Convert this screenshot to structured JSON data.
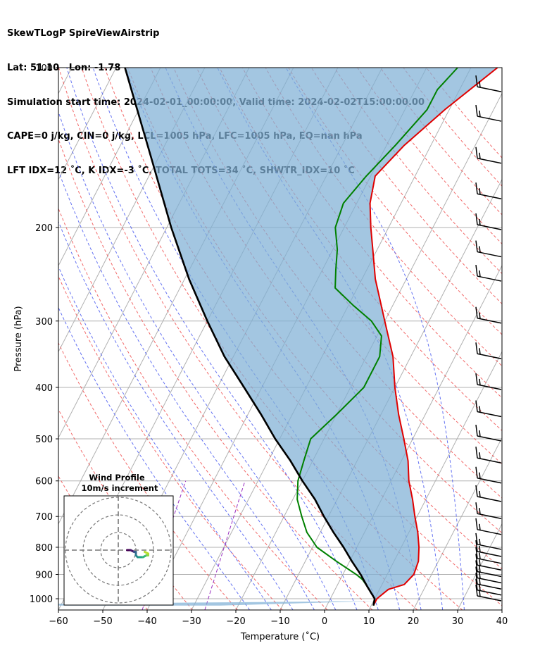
{
  "header": {
    "line1": "SkewTLogP SpireViewAirstrip",
    "line2": "Lat: 51.10   Lon: -1.78",
    "line3": "Simulation start time: 2024-02-01_00:00:00, Valid time: 2024-02-02T15:00:00.00",
    "line4": "CAPE=0 j/kg, CIN=0 j/kg, LCL=1005 hPa, LFC=1005 hPa, EQ=nan hPa",
    "line5": "LFT IDX=12 ˚C, K IDX=-3 ˚C, TOTAL TOTS=34 ˚C, SHWTR_IDX=10 ˚C"
  },
  "chart_data": {
    "type": "skewt",
    "xlabel": "Temperature (˚C)",
    "ylabel": "Pressure (hPa)",
    "xlim": [
      -60,
      40
    ],
    "plim": [
      1050,
      100
    ],
    "x_ticks": [
      -60,
      -50,
      -40,
      -30,
      -20,
      -10,
      0,
      10,
      20,
      30,
      40
    ],
    "x_tick_labels": [
      "−60",
      "−50",
      "−40",
      "−30",
      "−20",
      "−10",
      "0",
      "10",
      "20",
      "30",
      "40"
    ],
    "p_ticks": [
      1000,
      900,
      800,
      700,
      600,
      500,
      400,
      300,
      200,
      100
    ],
    "p_tick_labels": [
      "1000",
      "900",
      "800",
      "700",
      "600",
      "500",
      "400",
      "300",
      "200",
      "100"
    ],
    "series": [
      {
        "name": "Temperature",
        "color": "#e00000",
        "points": [
          [
            1030,
            10.5
          ],
          [
            1000,
            10.5
          ],
          [
            960,
            12
          ],
          [
            940,
            15
          ],
          [
            900,
            16
          ],
          [
            850,
            15.5
          ],
          [
            800,
            14
          ],
          [
            750,
            12
          ],
          [
            700,
            9.5
          ],
          [
            650,
            7
          ],
          [
            600,
            4
          ],
          [
            550,
            1.5
          ],
          [
            500,
            -2
          ],
          [
            450,
            -6
          ],
          [
            400,
            -10
          ],
          [
            350,
            -14
          ],
          [
            300,
            -20
          ],
          [
            250,
            -27
          ],
          [
            220,
            -31
          ],
          [
            200,
            -34
          ],
          [
            180,
            -37
          ],
          [
            160,
            -39
          ],
          [
            140,
            -36
          ],
          [
            120,
            -31
          ],
          [
            100,
            -24
          ]
        ]
      },
      {
        "name": "Dewpoint",
        "color": "#008000",
        "points": [
          [
            1030,
            10.5
          ],
          [
            1000,
            10
          ],
          [
            950,
            7
          ],
          [
            920,
            5
          ],
          [
            900,
            3
          ],
          [
            850,
            -3
          ],
          [
            800,
            -9
          ],
          [
            750,
            -13
          ],
          [
            700,
            -16
          ],
          [
            650,
            -19
          ],
          [
            600,
            -21
          ],
          [
            550,
            -22
          ],
          [
            500,
            -23
          ],
          [
            450,
            -20
          ],
          [
            400,
            -17
          ],
          [
            350,
            -17
          ],
          [
            320,
            -19
          ],
          [
            300,
            -23
          ],
          [
            280,
            -29
          ],
          [
            260,
            -35
          ],
          [
            240,
            -37
          ],
          [
            220,
            -39
          ],
          [
            200,
            -42
          ],
          [
            180,
            -43
          ],
          [
            160,
            -41
          ],
          [
            140,
            -38
          ],
          [
            120,
            -35
          ],
          [
            110,
            -35
          ],
          [
            100,
            -33
          ]
        ]
      },
      {
        "name": "Parcel",
        "color": "#000000",
        "points": [
          [
            1030,
            10.5
          ],
          [
            1000,
            10
          ],
          [
            950,
            7
          ],
          [
            900,
            4
          ],
          [
            850,
            0.5
          ],
          [
            800,
            -3
          ],
          [
            750,
            -7
          ],
          [
            700,
            -11
          ],
          [
            650,
            -15
          ],
          [
            600,
            -20
          ],
          [
            550,
            -25
          ],
          [
            500,
            -31
          ],
          [
            450,
            -37
          ],
          [
            400,
            -44
          ],
          [
            350,
            -52
          ],
          [
            300,
            -60
          ],
          [
            250,
            -69
          ],
          [
            200,
            -79
          ],
          [
            150,
            -91
          ],
          [
            100,
            -108
          ]
        ]
      }
    ],
    "dry_adiabats_theta_K": [
      230,
      240,
      250,
      260,
      270,
      280,
      290,
      300,
      310,
      320,
      330,
      340,
      350,
      360,
      370,
      380,
      390,
      400,
      410,
      420,
      430,
      440,
      450
    ],
    "moist_adiabats_T_C": [
      -20,
      -15,
      -10,
      -5,
      0,
      5,
      10,
      15,
      20,
      25,
      30
    ],
    "isotherms_C": [
      -140,
      -130,
      -120,
      -110,
      -100,
      -90,
      -80,
      -70,
      -60,
      -50,
      -40,
      -30,
      -20,
      -10,
      0,
      10,
      20,
      30,
      40
    ],
    "wind_barb_pressures_hPa": [
      1000,
      975,
      950,
      925,
      900,
      875,
      850,
      825,
      800,
      750,
      700,
      650,
      600,
      550,
      500,
      450,
      400,
      350,
      300,
      250,
      225,
      200,
      175,
      150,
      125,
      110
    ],
    "wind_profile": {
      "title": "Wind Profile",
      "subtitle": "10m/s increment",
      "rings_ms": [
        10,
        20,
        30
      ],
      "hodograph_uv": [
        [
          5,
          0
        ],
        [
          7,
          0
        ],
        [
          9,
          -1
        ],
        [
          10,
          -1
        ],
        [
          10,
          -3
        ],
        [
          11,
          -4
        ],
        [
          12,
          -4
        ],
        [
          14,
          -4
        ],
        [
          16,
          -3
        ],
        [
          17,
          -3
        ],
        [
          17,
          -2
        ],
        [
          15,
          -1
        ]
      ]
    }
  }
}
